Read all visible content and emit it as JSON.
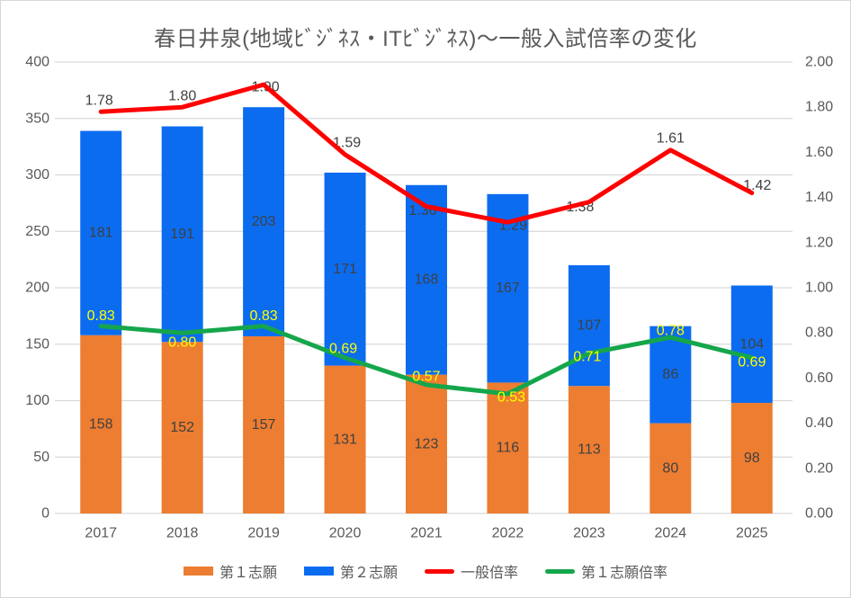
{
  "title": "春日井泉(地域ﾋﾞｼﾞﾈｽ・ITﾋﾞｼﾞﾈｽ)～一般入試倍率の変化",
  "colors": {
    "bar_first_choice": "#ED7D31",
    "bar_second_choice": "#0B6CF0",
    "line_general_ratio": "#FF0000",
    "line_first_choice_ratio": "#15A64C",
    "gridline": "#D9D9D9",
    "axis_text": "#595959",
    "data_label": "#404040",
    "ratio_label_yellow": "#FFFF00",
    "title_text": "#595959"
  },
  "chart_data": {
    "type": "combo-stacked-bar-line",
    "title": "春日井泉(地域ﾋﾞｼﾞﾈｽ・ITﾋﾞｼﾞﾈｽ)～一般入試倍率の変化",
    "categories": [
      "2017",
      "2018",
      "2019",
      "2020",
      "2021",
      "2022",
      "2023",
      "2024",
      "2025"
    ],
    "series": [
      {
        "name": "第１志願",
        "type": "bar",
        "stack": "total",
        "axis": "left",
        "color": "#ED7D31",
        "values": [
          158,
          152,
          157,
          131,
          123,
          116,
          113,
          80,
          98
        ],
        "labels": [
          "158",
          "152",
          "157",
          "131",
          "123",
          "116",
          "113",
          "80",
          "98"
        ],
        "label_color": "#404040"
      },
      {
        "name": "第２志願",
        "type": "bar",
        "stack": "total",
        "axis": "left",
        "color": "#0B6CF0",
        "values": [
          181,
          191,
          203,
          171,
          168,
          167,
          107,
          86,
          104
        ],
        "labels": [
          "181",
          "191",
          "203",
          "171",
          "168",
          "167",
          "107",
          "86",
          "104"
        ],
        "label_color": "#404040"
      },
      {
        "name": "一般倍率",
        "type": "line",
        "axis": "right",
        "color": "#FF0000",
        "values": [
          1.78,
          1.8,
          1.9,
          1.59,
          1.36,
          1.29,
          1.38,
          1.61,
          1.42
        ],
        "labels": [
          "1.78",
          "1.80",
          "1.90",
          "1.59",
          "1.36",
          "1.29",
          "1.38",
          "1.61",
          "1.42"
        ],
        "label_color": "#404040"
      },
      {
        "name": "第１志願倍率",
        "type": "line",
        "axis": "right",
        "color": "#15A64C",
        "values": [
          0.83,
          0.8,
          0.83,
          0.69,
          0.57,
          0.53,
          0.71,
          0.78,
          0.69
        ],
        "labels": [
          "0.83",
          "0.80",
          "0.83",
          "0.69",
          "0.57",
          "0.53",
          "0.71",
          "0.78",
          "0.69"
        ],
        "label_color": "#FFFF00"
      }
    ],
    "left_axis": {
      "min": 0,
      "max": 400,
      "step": 50,
      "ticks": [
        "0",
        "50",
        "100",
        "150",
        "200",
        "250",
        "300",
        "350",
        "400"
      ]
    },
    "right_axis": {
      "min": 0.0,
      "max": 2.0,
      "step": 0.2,
      "ticks": [
        "0.00",
        "0.20",
        "0.40",
        "0.60",
        "0.80",
        "1.00",
        "1.20",
        "1.40",
        "1.60",
        "1.80",
        "2.00"
      ]
    },
    "grid": true,
    "legend_position": "bottom"
  },
  "legend": {
    "items": [
      {
        "label": "第１志願"
      },
      {
        "label": "第２志願"
      },
      {
        "label": "一般倍率"
      },
      {
        "label": "第１志願倍率"
      }
    ]
  }
}
